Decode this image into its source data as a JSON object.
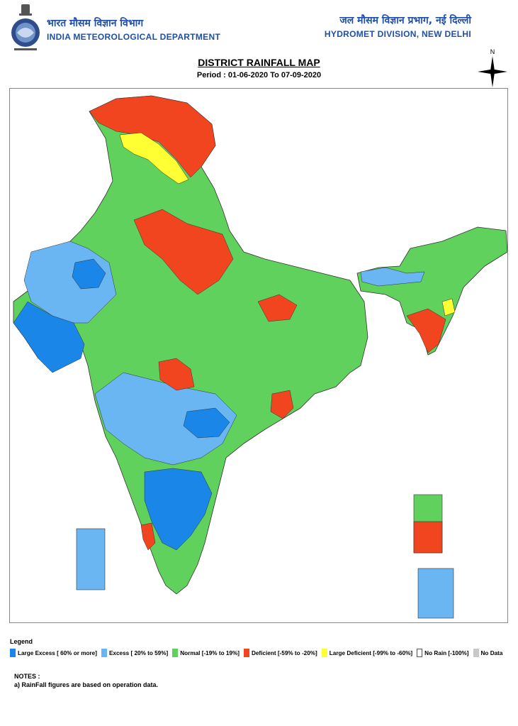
{
  "header": {
    "left_hindi": "भारत मौसम विज्ञान विभाग",
    "left_english": "INDIA METEOROLOGICAL DEPARTMENT",
    "right_hindi": "जल मौसम विज्ञान प्रभाग, नई दिल्ली",
    "right_english": "HYDROMET DIVISION, NEW DELHI"
  },
  "title": "DISTRICT RAINFALL MAP",
  "period": "Period : 01-06-2020 To 07-09-2020",
  "compass_label": "N",
  "legend": {
    "title": "Legend",
    "items": [
      {
        "label": "Large Excess [ 60% or more]",
        "color": "#1a86e8"
      },
      {
        "label": "Excess [ 20% to 59%]",
        "color": "#6ab6f2"
      },
      {
        "label": "Normal [-19% to 19%]",
        "color": "#5fd15c"
      },
      {
        "label": "Deficient [-59% to -20%]",
        "color": "#f0451f"
      },
      {
        "label": "Large Deficient [-99% to -60%]",
        "color": "#ffff33"
      },
      {
        "label": "No Rain [-100%]",
        "color": "#ffffff"
      },
      {
        "label": "No Data",
        "color": "#c8c8c8"
      }
    ]
  },
  "notes": {
    "heading": "NOTES :",
    "line1": "a) RainFall figures are based on operation data."
  }
}
